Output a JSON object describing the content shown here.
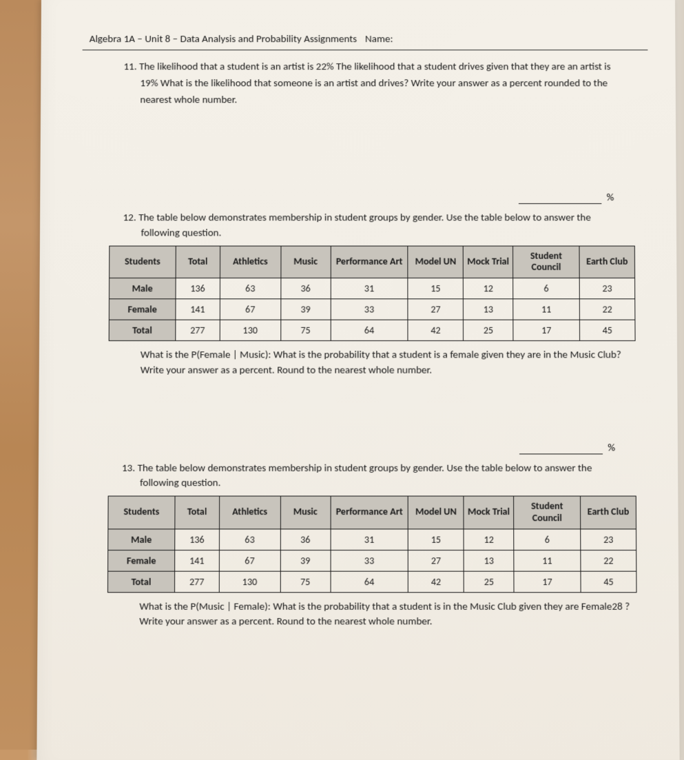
{
  "header": {
    "course": "Algebra 1A – Unit 8 – Data Analysis and Probability Assignments",
    "name_label": "Name:"
  },
  "q11": {
    "number": "11.",
    "text": "The likelihood that a student is an artist is 22%  The likelihood that a student drives given that they are an artist is 19%  What is the likelihood that someone is an artist and drives?  Write your answer as a percent rounded to the nearest whole number."
  },
  "percent_symbol": "%",
  "q12": {
    "number": "12.",
    "intro": "The table below demonstrates membership in student groups by gender.  Use the table below to answer the following question.",
    "followup": "What is the P(Female | Music):  What is the probability that a student is a female given they are in the Music Club? Write your answer as a percent. Round to the nearest whole number."
  },
  "q13": {
    "number": "13.",
    "intro": "The table below demonstrates membership in student groups by gender.  Use the table below to answer the following question.",
    "followup": "What is the P(Music | Female):  What is the probability that a student is in the Music Club given they are Female28 ? Write your answer as a percent. Round to the nearest whole number."
  },
  "table": {
    "columns": [
      "Students",
      "Total",
      "Athletics",
      "Music",
      "Performance Art",
      "Model UN",
      "Mock Trial",
      "Student Council",
      "Earth Club"
    ],
    "column_widths_pct": [
      12,
      8,
      11,
      9,
      14,
      10,
      9,
      12,
      10
    ],
    "header_bg": "#c8c4bc",
    "border_color": "#1a1a1a",
    "cell_bg": "#f0ece4",
    "font_size_pt": 10,
    "rows": [
      {
        "label": "Male",
        "values": [
          136,
          63,
          36,
          31,
          15,
          12,
          6,
          23
        ]
      },
      {
        "label": "Female",
        "values": [
          141,
          67,
          39,
          33,
          27,
          13,
          11,
          22
        ]
      },
      {
        "label": "Total",
        "values": [
          277,
          130,
          75,
          64,
          42,
          25,
          17,
          45
        ]
      }
    ]
  },
  "styling": {
    "page_bg": "#f2eee6",
    "text_color": "#1a1a1a",
    "wood_color": "#c09060",
    "body_font": "Calibri, Arial, sans-serif",
    "body_fontsize_pt": 11
  }
}
